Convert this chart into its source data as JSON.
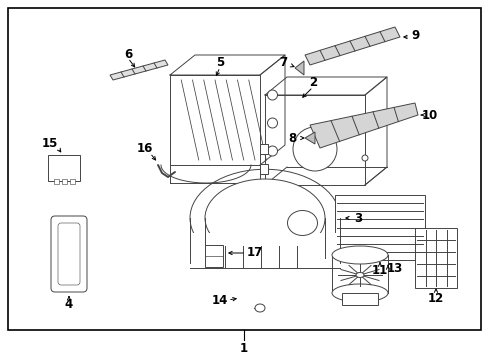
{
  "bg_color": "#ffffff",
  "border_color": "#000000",
  "line_color": "#444444",
  "fig_width": 4.89,
  "fig_height": 3.6,
  "dpi": 100
}
